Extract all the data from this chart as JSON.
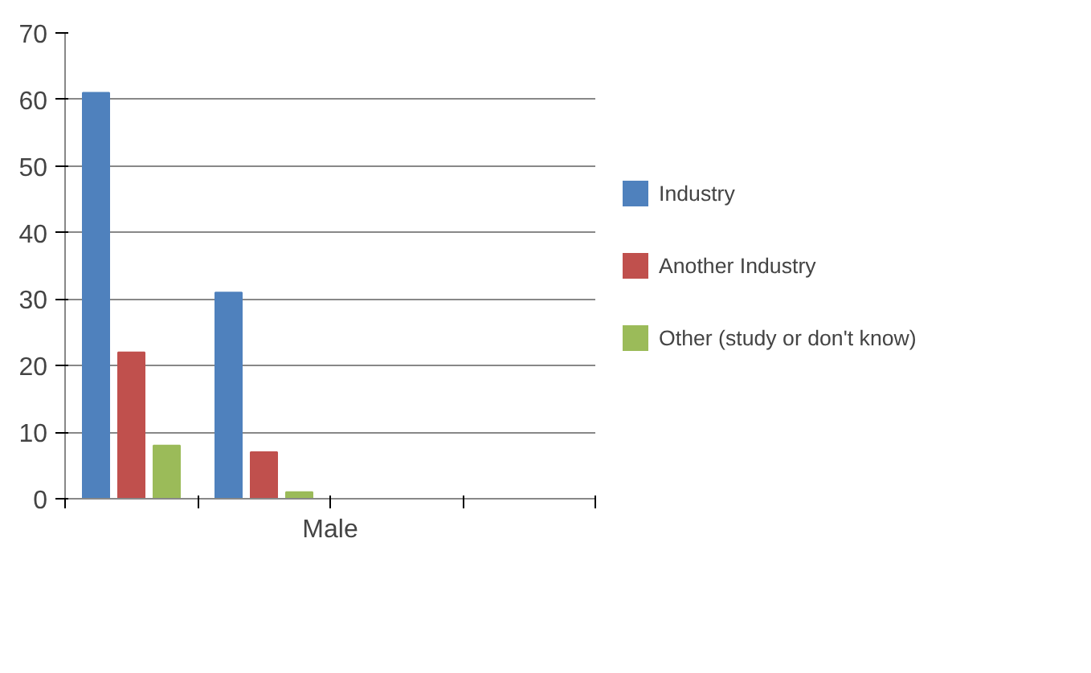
{
  "chart_data": {
    "type": "bar",
    "xlabel": "Male",
    "categories": [
      null,
      null,
      null,
      null
    ],
    "series": [
      {
        "name": "Industry",
        "color": "#4f81bd",
        "values": [
          61,
          31,
          null,
          null
        ]
      },
      {
        "name": "Another Industry",
        "color": "#c0504d",
        "values": [
          22,
          7,
          null,
          null
        ]
      },
      {
        "name": "Other (study or don't know)",
        "color": "#9bbb59",
        "values": [
          8,
          1,
          null,
          null
        ]
      }
    ],
    "ylim": [
      0,
      70
    ],
    "yticks": [
      0,
      10,
      20,
      30,
      40,
      50,
      60,
      70
    ],
    "grid": "y",
    "legend": "right"
  }
}
